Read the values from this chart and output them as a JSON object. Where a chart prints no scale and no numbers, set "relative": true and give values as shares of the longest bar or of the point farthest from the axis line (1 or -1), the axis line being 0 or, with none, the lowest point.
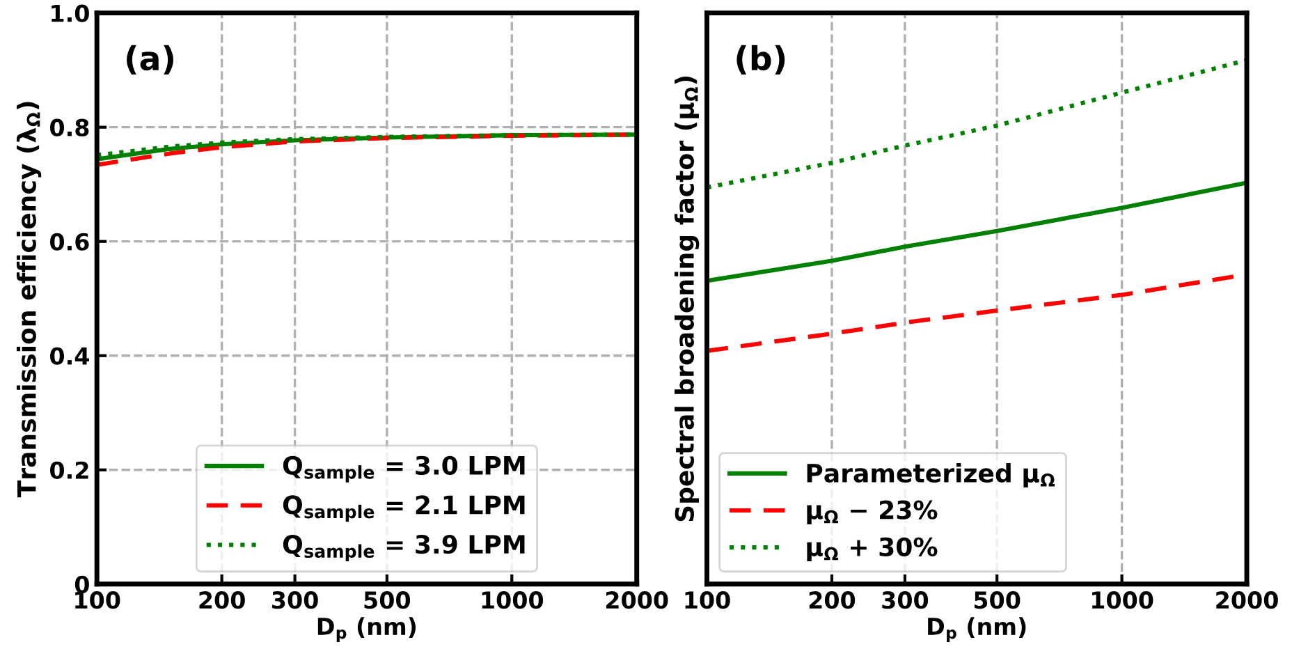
{
  "chart_data": [
    {
      "type": "line",
      "xlabel": "D$_{p}$ (nm)",
      "ylabel": "Transmission efficiency (λ$_{Ω}$)",
      "annotations": [
        "(a)"
      ],
      "log": "x",
      "xlim": [
        100,
        2000
      ],
      "xticks": [
        100,
        200,
        300,
        500,
        1000,
        2000
      ],
      "ylim": [
        0,
        1
      ],
      "yticks": [
        0,
        0.2,
        0.4,
        0.6,
        0.8,
        {
          "value": 1,
          "label": "1.0"
        }
      ],
      "grid": true,
      "legend": "bottom",
      "marker": "none",
      "x": [
        100,
        150,
        200,
        300,
        500,
        1000,
        2000
      ],
      "series": [
        {
          "name": "Q$_{sample}$ = 3.0 LPM",
          "color": "#008000",
          "line_style": "solid",
          "values": [
            0.744,
            0.762,
            0.77,
            0.777,
            0.782,
            0.786,
            0.787
          ]
        },
        {
          "name": "Q$_{sample}$ = 2.1 LPM",
          "color": "#ff0000",
          "line_style": "dashed",
          "values": [
            0.734,
            0.754,
            0.765,
            0.775,
            0.781,
            0.785,
            0.787
          ]
        },
        {
          "name": "Q$_{sample}$ = 3.9 LPM",
          "color": "#008000",
          "line_style": "dotted",
          "values": [
            0.751,
            0.766,
            0.773,
            0.779,
            0.783,
            0.786,
            0.787
          ]
        }
      ]
    },
    {
      "type": "line",
      "xlabel": "D$_{p}$ (nm)",
      "ylabel": "Spectral broadening factor (μ$_{Ω}$)",
      "annotations": [
        "(b)"
      ],
      "log": "x",
      "xlim": [
        100,
        2000
      ],
      "xticks": [
        100,
        200,
        300,
        500,
        1000,
        2000
      ],
      "relative": true,
      "grid": true,
      "legend": "bottom left",
      "marker": "none",
      "x": [
        100,
        200,
        300,
        500,
        1000,
        2000
      ],
      "series": [
        {
          "name": "Parameterized μ$_{Ω}$",
          "color": "#008000",
          "line_style": "solid",
          "values": [
            0.579,
            0.617,
            0.644,
            0.674,
            0.718,
            0.766
          ]
        },
        {
          "name": "μ$_{Ω}$ − 23%",
          "color": "#ff0000",
          "line_style": "dashed",
          "values": [
            0.445,
            0.478,
            0.499,
            0.522,
            0.552,
            0.591
          ]
        },
        {
          "name": "μ$_{Ω}$ + 30%",
          "color": "#008000",
          "line_style": "dotted",
          "values": [
            0.757,
            0.804,
            0.837,
            0.875,
            0.938,
            1.0
          ]
        }
      ]
    }
  ]
}
